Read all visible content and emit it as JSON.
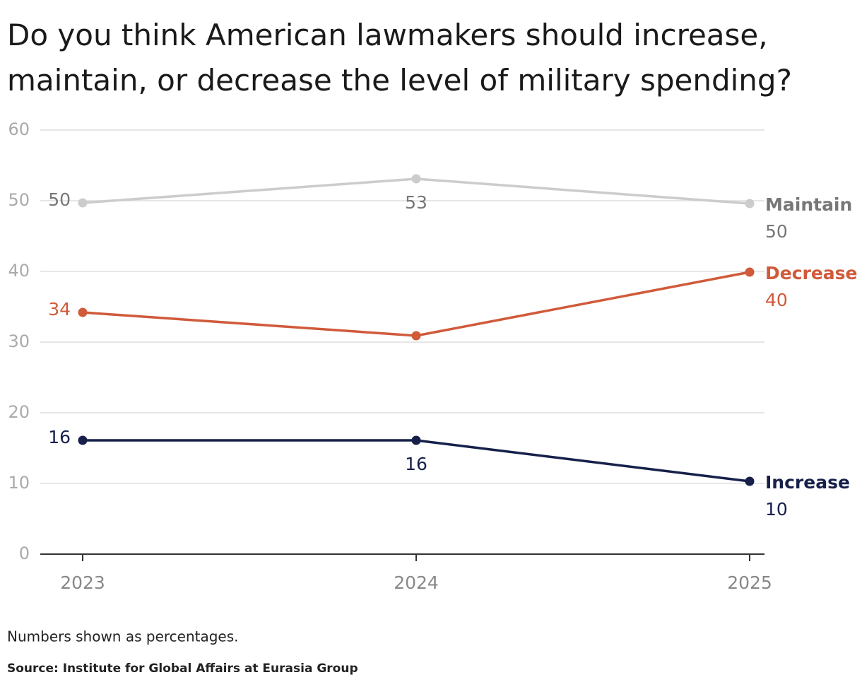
{
  "chart_data": {
    "type": "line",
    "title": "Do you think American lawmakers should increase, maintain, or decrease the level of military spending?",
    "categories": [
      "2023",
      "2024",
      "2025"
    ],
    "series": [
      {
        "name": "Maintain",
        "color": "#cccccc",
        "label_color": "#777777",
        "values": [
          49.7,
          53.1,
          49.6
        ],
        "value_labels": [
          "50",
          "53",
          "50"
        ]
      },
      {
        "name": "Decrease",
        "color": "#d05a3a",
        "label_color": "#d05a3a",
        "values": [
          34.2,
          30.9,
          39.9
        ],
        "value_labels": [
          "34",
          null,
          "40"
        ]
      },
      {
        "name": "Increase",
        "color": "#16204a",
        "label_color": "#16204a",
        "values": [
          16.1,
          16.1,
          10.3
        ],
        "value_labels": [
          "16",
          "16",
          "10"
        ]
      }
    ],
    "ylim": [
      0,
      60
    ],
    "yticks": [
      0,
      10,
      20,
      30,
      40,
      50,
      60
    ],
    "grid": true,
    "note": "Numbers shown as percentages.",
    "source": "Source: Institute for Global Affairs at Eurasia Group"
  }
}
